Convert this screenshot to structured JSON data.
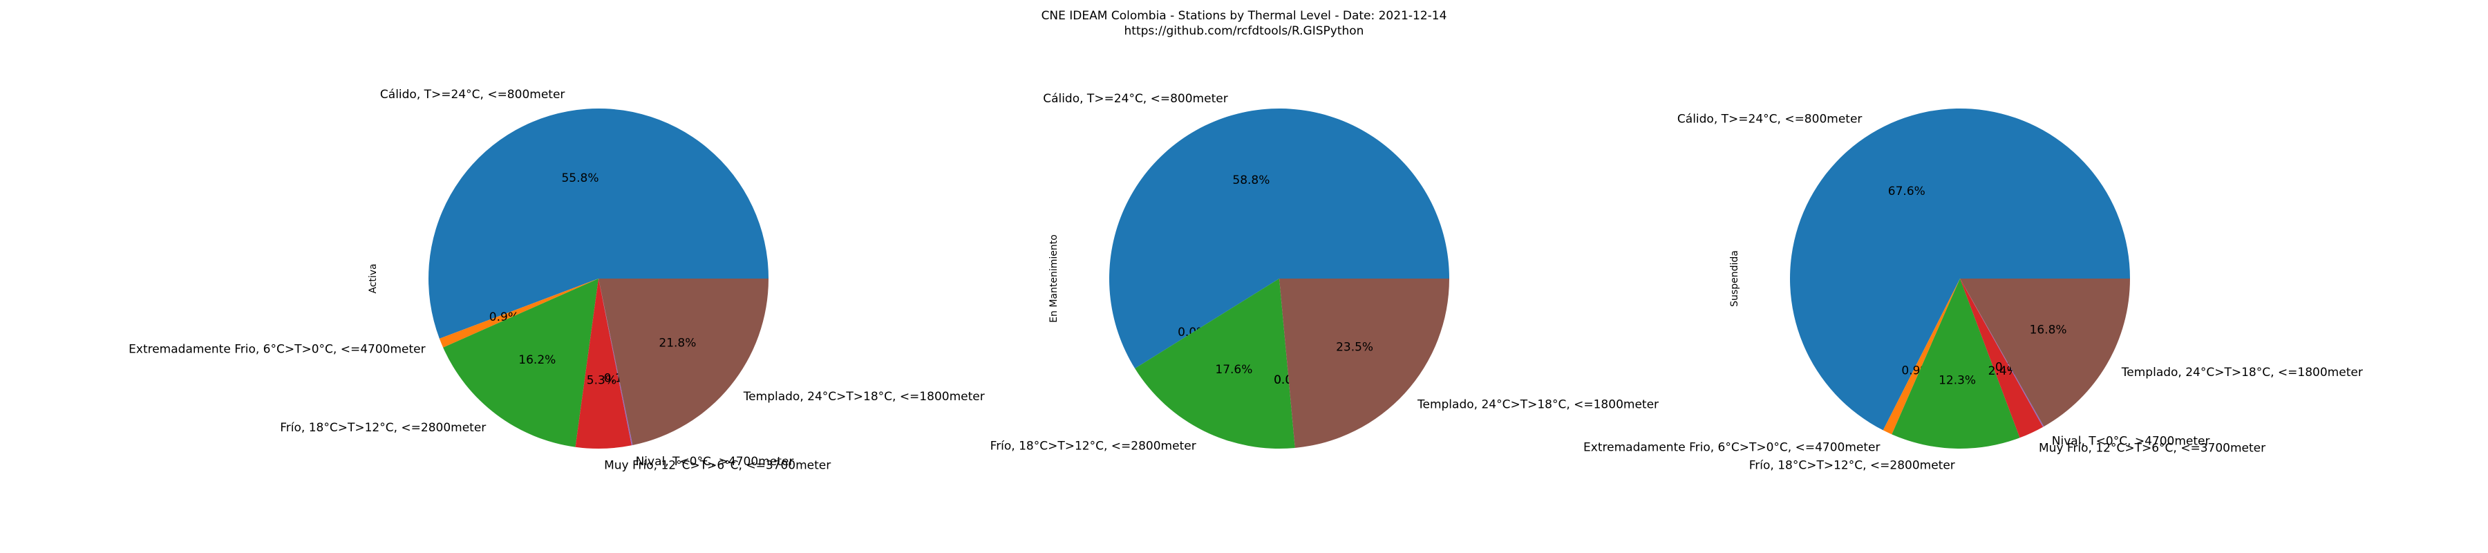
{
  "title": "CNE IDEAM Colombia -  Stations by Thermal Level - Date: 2021-12-14",
  "subtitle": "https://github.com/rcfdtools/R.GISPython",
  "colors": {
    "Cálido, T>=24°C, <=800meter": "#1f77b4",
    "Extremadamente Frio, 6°C>T>0°C, <=4700meter": "#ff7f0e",
    "Frío, 18°C>T>12°C, <=2800meter": "#2ca02c",
    "Muy Frío, 12°C>T>6°C, <=3700meter": "#d62728",
    "Nival, T<0°C, >4700meter": "#9467bd",
    "Templado, 24°C>T>18°C, <=1800meter": "#8c564b"
  },
  "chart_data": [
    {
      "type": "pie",
      "ylabel": "Activa",
      "slices": [
        {
          "label": "Cálido, T>=24°C, <=800meter",
          "value": 55.8,
          "pct_label": "55.8%"
        },
        {
          "label": "Extremadamente Frio, 6°C>T>0°C, <=4700meter",
          "value": 0.9,
          "pct_label": "0.9%"
        },
        {
          "label": "Frío, 18°C>T>12°C, <=2800meter",
          "value": 16.2,
          "pct_label": "16.2%"
        },
        {
          "label": "Muy Frío, 12°C>T>6°C, <=3700meter",
          "value": 5.3,
          "pct_label": "5.3%"
        },
        {
          "label": "Nival, T<0°C, >4700meter",
          "value": 0.1,
          "pct_label": "0.1%"
        },
        {
          "label": "Templado, 24°C>T>18°C, <=1800meter",
          "value": 21.8,
          "pct_label": "21.8%"
        }
      ]
    },
    {
      "type": "pie",
      "ylabel": "En Mantenimiento",
      "slices": [
        {
          "label": "Cálido, T>=24°C, <=800meter",
          "value": 58.8,
          "pct_label": "58.8%"
        },
        {
          "label": "",
          "value": 0.0,
          "pct_label": "0.0%"
        },
        {
          "label": "Frío, 18°C>T>12°C, <=2800meter",
          "value": 17.6,
          "pct_label": "17.6%"
        },
        {
          "label": "",
          "value": 0.0,
          "pct_label": "0.0%"
        },
        {
          "label": "",
          "value": 0.0,
          "pct_label": "0.0%"
        },
        {
          "label": "Templado, 24°C>T>18°C, <=1800meter",
          "value": 23.5,
          "pct_label": "23.5%"
        }
      ]
    },
    {
      "type": "pie",
      "ylabel": "Suspendida",
      "slices": [
        {
          "label": "Cálido, T>=24°C, <=800meter",
          "value": 67.6,
          "pct_label": "67.6%"
        },
        {
          "label": "Extremadamente Frio, 6°C>T>0°C, <=4700meter",
          "value": 0.9,
          "pct_label": "0.9%"
        },
        {
          "label": "Frío, 18°C>T>12°C, <=2800meter",
          "value": 12.3,
          "pct_label": "12.3%"
        },
        {
          "label": "Muy Frío, 12°C>T>6°C, <=3700meter",
          "value": 2.4,
          "pct_label": "2.4%"
        },
        {
          "label": "Nival, T<0°C, >4700meter",
          "value": 0.1,
          "pct_label": "0.1%"
        },
        {
          "label": "Templado, 24°C>T>18°C, <=1800meter",
          "value": 16.8,
          "pct_label": "16.8%"
        }
      ]
    }
  ]
}
